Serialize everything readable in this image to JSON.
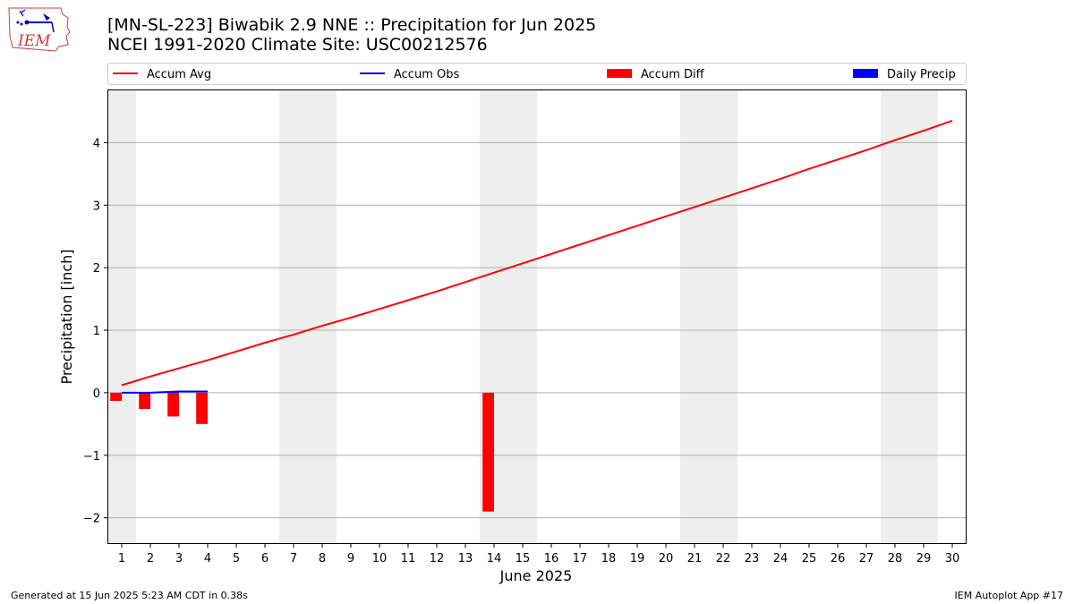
{
  "title": "[MN-SL-223] Biwabik 2.9 NNE :: Precipitation for Jun 2025",
  "subtitle": "NCEI 1991-2020 Climate Site: USC00212576",
  "logo_text": "IEM",
  "footer": {
    "left": "Generated at 15 Jun 2025 5:23 AM CDT in 0.38s",
    "right": "IEM Autoplot App #17"
  },
  "chart_data": {
    "type": "line",
    "xlabel": "June 2025",
    "ylabel": "Precipitation [inch]",
    "x": [
      1,
      2,
      3,
      4,
      5,
      6,
      7,
      8,
      9,
      10,
      11,
      12,
      13,
      14,
      15,
      16,
      17,
      18,
      19,
      20,
      21,
      22,
      23,
      24,
      25,
      26,
      27,
      28,
      29,
      30
    ],
    "xlim": [
      0.5,
      30.5
    ],
    "ylim": [
      -2.42,
      4.85
    ],
    "yticks": [
      -2,
      -1,
      0,
      1,
      2,
      3,
      4
    ],
    "ytick_labels": [
      "−2",
      "−1",
      "0",
      "1",
      "2",
      "3",
      "4"
    ],
    "grid": "horizontal",
    "legend_position": "top",
    "weekend_shading": [
      1,
      7,
      8,
      14,
      15,
      21,
      22,
      28,
      29
    ],
    "colors": {
      "avg": "#ff0000",
      "obs": "#0000ff",
      "diff": "#ff0000",
      "daily": "#0000ff",
      "shade": "#eeeeee",
      "grid": "#b0b0b0"
    },
    "series": [
      {
        "name": "Accum Avg",
        "kind": "line",
        "color": "#ff0000",
        "x": [
          1,
          2,
          3,
          4,
          5,
          6,
          7,
          8,
          9,
          10,
          11,
          12,
          13,
          14,
          15,
          16,
          17,
          18,
          19,
          20,
          21,
          22,
          23,
          24,
          25,
          26,
          27,
          28,
          29,
          30
        ],
        "values": [
          0.12,
          0.26,
          0.39,
          0.52,
          0.66,
          0.8,
          0.93,
          1.07,
          1.2,
          1.34,
          1.48,
          1.62,
          1.77,
          1.92,
          2.07,
          2.22,
          2.37,
          2.52,
          2.67,
          2.82,
          2.97,
          3.12,
          3.27,
          3.42,
          3.58,
          3.73,
          3.88,
          4.04,
          4.19,
          4.35
        ]
      },
      {
        "name": "Accum Obs",
        "kind": "line",
        "color": "#0000ff",
        "x": [
          1,
          2,
          3,
          4
        ],
        "values": [
          0.0,
          0.0,
          0.02,
          0.02
        ]
      },
      {
        "name": "Accum Diff",
        "kind": "bar",
        "color": "#ff0000",
        "x": [
          1,
          2,
          3,
          4,
          14
        ],
        "values": [
          -0.13,
          -0.26,
          -0.38,
          -0.5,
          -1.9
        ]
      },
      {
        "name": "Daily Precip",
        "kind": "bar",
        "color": "#0000ff",
        "x": [
          1,
          2,
          3,
          4
        ],
        "values": [
          0.0,
          0.0,
          0.02,
          0.0
        ]
      }
    ]
  }
}
